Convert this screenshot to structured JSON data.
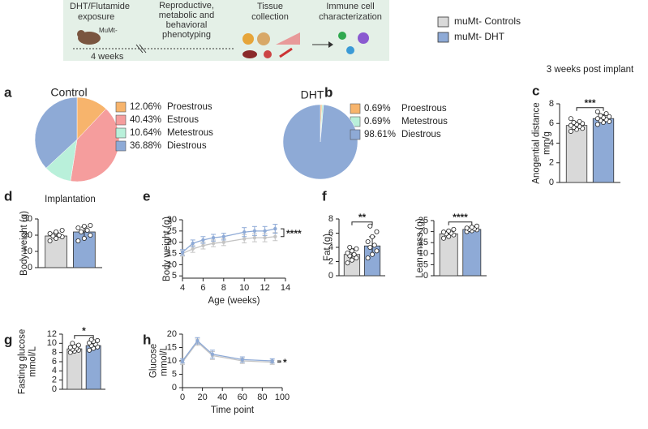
{
  "schematic": {
    "exposure": [
      "DHT/Flutamide",
      "exposure"
    ],
    "strain": "MuMt-",
    "duration": "4 weeks",
    "phenotyping": [
      "Reproductive,",
      "metabolic and",
      "behavioral",
      "phenotyping"
    ],
    "tissue": [
      "Tissue",
      "collection"
    ],
    "immune": [
      "Immune cell",
      "characterization"
    ]
  },
  "groups": [
    {
      "name": "muMt- Controls",
      "color": "#d9d9d9"
    },
    {
      "name": "muMt- DHT",
      "color": "#8eaad6"
    }
  ],
  "chart_data": [
    {
      "type": "pie",
      "panel": "a",
      "title": "Control",
      "categories": [
        "Proestrous",
        "Estrous",
        "Metestrous",
        "Diestrous"
      ],
      "values": [
        12.06,
        40.43,
        10.64,
        36.88
      ],
      "value_labels": [
        "12.06%",
        "40.43%",
        "10.64%",
        "36.88%"
      ],
      "colors": [
        "#f7b46c",
        "#f59d9d",
        "#b9f0da",
        "#8eaad6"
      ]
    },
    {
      "type": "pie",
      "panel": "b",
      "title": "DHT",
      "categories": [
        "Proestrous",
        "Metestrous",
        "Diestrous"
      ],
      "values": [
        0.69,
        0.69,
        98.61
      ],
      "value_labels": [
        "0.69%",
        "0.69%",
        "98.61%"
      ],
      "colors": [
        "#f7b46c",
        "#b9f0da",
        "#8eaad6"
      ]
    },
    {
      "type": "bar",
      "panel": "c",
      "title": "3 weeks post implant",
      "ylabel": [
        "Anogential distance",
        "mm/g"
      ],
      "ylim": [
        0,
        8
      ],
      "yticks": [
        0,
        2,
        4,
        6,
        8
      ],
      "significance": "***",
      "series": [
        {
          "values": [
            5.8
          ],
          "errors": [
            0.35
          ],
          "points": [
            5.2,
            5.4,
            5.5,
            5.6,
            5.7,
            5.8,
            5.9,
            6.0,
            6.1,
            6.2,
            6.5
          ]
        },
        {
          "values": [
            6.5
          ],
          "errors": [
            0.4
          ],
          "points": [
            5.9,
            6.1,
            6.2,
            6.3,
            6.4,
            6.5,
            6.6,
            6.7,
            6.8,
            7.0,
            7.2
          ]
        }
      ]
    },
    {
      "type": "bar",
      "panel": "d",
      "title": "Implantation",
      "ylabel": [
        "Body weight (g)"
      ],
      "ylim": [
        0,
        30
      ],
      "yticks": [
        0,
        10,
        20,
        30
      ],
      "series": [
        {
          "values": [
            19.5
          ],
          "errors": [
            2
          ],
          "points": [
            16.5,
            18,
            19,
            19.5,
            20,
            21,
            22,
            23
          ]
        },
        {
          "values": [
            22
          ],
          "errors": [
            3
          ],
          "points": [
            16.5,
            18,
            20,
            22,
            23,
            24.5,
            25.5,
            26
          ]
        }
      ]
    },
    {
      "type": "line",
      "panel": "e",
      "xlabel": "Age (weeks)",
      "ylabel": [
        "Body weight (g)"
      ],
      "x": [
        4,
        5,
        6,
        7,
        8,
        10,
        11,
        12,
        13
      ],
      "xlim": [
        4,
        14
      ],
      "xticks": [
        4,
        6,
        8,
        10,
        12,
        14
      ],
      "ylim": [
        4,
        30
      ],
      "yticks": [
        5,
        10,
        15,
        20,
        25,
        30
      ],
      "significance": "****",
      "series": [
        {
          "values": [
            15,
            17,
            18.5,
            19.5,
            20,
            21.5,
            22,
            22,
            22.5
          ],
          "errors": [
            1.2,
            1.5,
            1.5,
            1.5,
            1.5,
            1.8,
            1.8,
            1.8,
            1.8
          ]
        },
        {
          "values": [
            15.5,
            19.5,
            21,
            22,
            22.5,
            24.5,
            25,
            25,
            26
          ],
          "errors": [
            1.2,
            1.5,
            1.5,
            1.5,
            1.5,
            2,
            2,
            2,
            2
          ]
        }
      ]
    },
    {
      "type": "bar",
      "panel": "f",
      "ylabel": [
        "Fat (g)"
      ],
      "ylim": [
        0,
        8
      ],
      "yticks": [
        0,
        2,
        4,
        6,
        8
      ],
      "significance": "**",
      "series": [
        {
          "values": [
            3.0
          ],
          "errors": [
            0.8
          ],
          "points": [
            1.8,
            2.2,
            2.5,
            2.8,
            3.0,
            3.2,
            3.5,
            3.8,
            4.0
          ]
        },
        {
          "values": [
            4.2
          ],
          "errors": [
            1.3
          ],
          "points": [
            2.5,
            3.0,
            3.5,
            4.0,
            4.3,
            4.8,
            5.5,
            6.2,
            7.0
          ]
        }
      ]
    },
    {
      "type": "bar",
      "ylabel": [
        "Lean mass (g)"
      ],
      "ylim": [
        0,
        25
      ],
      "yticks": [
        0,
        5,
        10,
        15,
        20,
        25
      ],
      "significance": "****",
      "series": [
        {
          "values": [
            19
          ],
          "errors": [
            1
          ],
          "points": [
            17,
            17.8,
            18.5,
            19,
            19.3,
            19.8,
            20.3,
            21
          ]
        },
        {
          "values": [
            21
          ],
          "errors": [
            0.7
          ],
          "points": [
            20,
            20.4,
            20.8,
            21,
            21.3,
            21.6,
            22,
            22.5
          ]
        }
      ]
    },
    {
      "type": "bar",
      "panel": "g",
      "ylabel": [
        "Fasting glucose",
        "mmol/L"
      ],
      "ylim": [
        0,
        12
      ],
      "yticks": [
        0,
        2,
        4,
        6,
        8,
        10,
        12
      ],
      "significance": "*",
      "series": [
        {
          "values": [
            8.8
          ],
          "errors": [
            0.5
          ],
          "points": [
            8.0,
            8.3,
            8.5,
            8.7,
            8.9,
            9.1,
            9.3,
            9.6,
            10.0
          ]
        },
        {
          "values": [
            9.5
          ],
          "errors": [
            0.7
          ],
          "points": [
            8.5,
            8.9,
            9.2,
            9.5,
            9.8,
            10.1,
            10.4,
            10.6,
            10.8
          ]
        }
      ]
    },
    {
      "type": "line",
      "panel": "h",
      "xlabel": "Time point",
      "ylabel": [
        "Glucose",
        "mmol/L"
      ],
      "x": [
        0,
        15,
        30,
        60,
        90
      ],
      "xlim": [
        0,
        100
      ],
      "xticks": [
        0,
        20,
        40,
        60,
        80,
        100
      ],
      "ylim": [
        0,
        20
      ],
      "yticks": [
        0,
        5,
        10,
        15,
        20
      ],
      "significance": "*",
      "series": [
        {
          "values": [
            9.5,
            17,
            12,
            10,
            9.5
          ],
          "errors": [
            0.8,
            1.2,
            1.5,
            1.0,
            0.8
          ]
        },
        {
          "values": [
            10,
            17.5,
            12.5,
            10.5,
            10
          ],
          "errors": [
            0.8,
            1.2,
            1.5,
            1.0,
            0.8
          ]
        }
      ]
    }
  ]
}
